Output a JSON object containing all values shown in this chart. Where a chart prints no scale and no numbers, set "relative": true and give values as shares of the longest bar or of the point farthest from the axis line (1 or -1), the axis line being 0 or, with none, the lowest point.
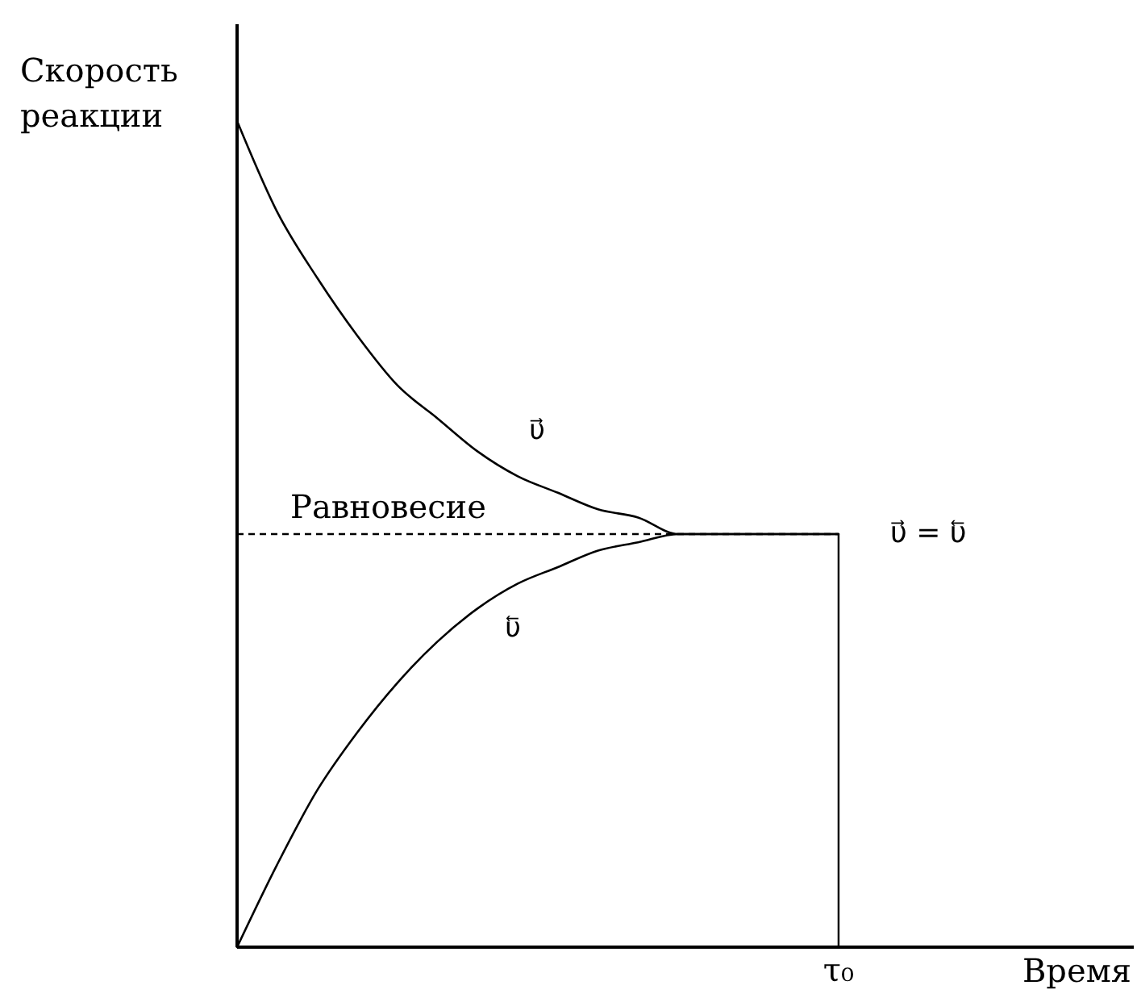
{
  "chart_data": {
    "type": "line",
    "relative": true,
    "xlabel": "Время",
    "ylabel": "Скорость реакции",
    "categories": [
      null,
      null,
      null,
      null,
      null,
      null,
      null,
      null,
      null,
      null,
      null,
      null,
      null,
      null,
      null,
      null,
      null,
      null,
      null,
      null,
      null,
      null,
      null
    ],
    "series": [
      {
        "name": "υ⃗",
        "color": "#000000",
        "values": [
          1.0,
          0.89,
          0.81,
          0.74,
          0.68,
          0.64,
          0.6,
          0.57,
          0.55,
          0.53,
          0.52,
          0.5,
          0.5,
          0.5,
          0.5,
          0.5,
          null,
          null,
          null,
          null,
          null,
          null,
          null
        ]
      },
      {
        "name": "υ⃖",
        "color": "#000000",
        "values": [
          0.0,
          0.1,
          0.19,
          0.26,
          0.32,
          0.37,
          0.41,
          0.44,
          0.46,
          0.48,
          0.49,
          0.5,
          0.5,
          0.5,
          0.5,
          0.5,
          null,
          null,
          null,
          null,
          null,
          null,
          null
        ]
      }
    ],
    "ref_lines": [
      {
        "axis": "y",
        "value": 0.5,
        "label": "Равновесие",
        "line_style": "dashed",
        "color": "#000000"
      }
    ],
    "annotations": [
      "υ⃗ = υ⃖",
      "τ₀"
    ],
    "grid": false,
    "marker": "none",
    "line_style": "solid"
  }
}
